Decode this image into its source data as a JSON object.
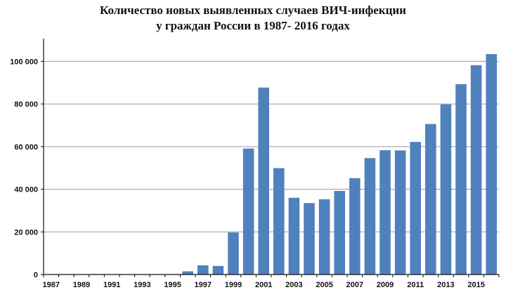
{
  "chart_data": {
    "type": "bar",
    "title_line1": "Количество новых выявленных случаев ВИЧ-инфекции",
    "title_line2": "у граждан России в 1987- 2016 годах",
    "categories": [
      "1987",
      "1988",
      "1989",
      "1990",
      "1991",
      "1992",
      "1993",
      "1994",
      "1995",
      "1996",
      "1997",
      "1998",
      "1999",
      "2000",
      "2001",
      "2002",
      "2003",
      "2004",
      "2005",
      "2006",
      "2007",
      "2008",
      "2009",
      "2010",
      "2011",
      "2012",
      "2013",
      "2014",
      "2015",
      "2016"
    ],
    "x_tick_labels": [
      "1987",
      "1989",
      "1991",
      "1993",
      "1995",
      "1997",
      "1999",
      "2001",
      "2003",
      "2005",
      "2007",
      "2009",
      "2011",
      "2013",
      "2015"
    ],
    "values": [
      20,
      100,
      150,
      200,
      100,
      50,
      100,
      150,
      200,
      1500,
      4300,
      4000,
      19700,
      59100,
      87700,
      49900,
      36000,
      33500,
      35300,
      39200,
      45200,
      54600,
      58300,
      58200,
      62200,
      70600,
      79800,
      89300,
      98200,
      103400
    ],
    "y_tick_labels": [
      "0",
      "20 000",
      "40 000",
      "60 000",
      "80 000",
      "100 000"
    ],
    "y_ticks": [
      0,
      20000,
      40000,
      60000,
      80000,
      100000
    ],
    "ylim": [
      0,
      110000
    ],
    "grid": true,
    "colors": {
      "bar": "#4f81bd",
      "grid": "#9a9a9a",
      "axis": "#111111"
    }
  }
}
